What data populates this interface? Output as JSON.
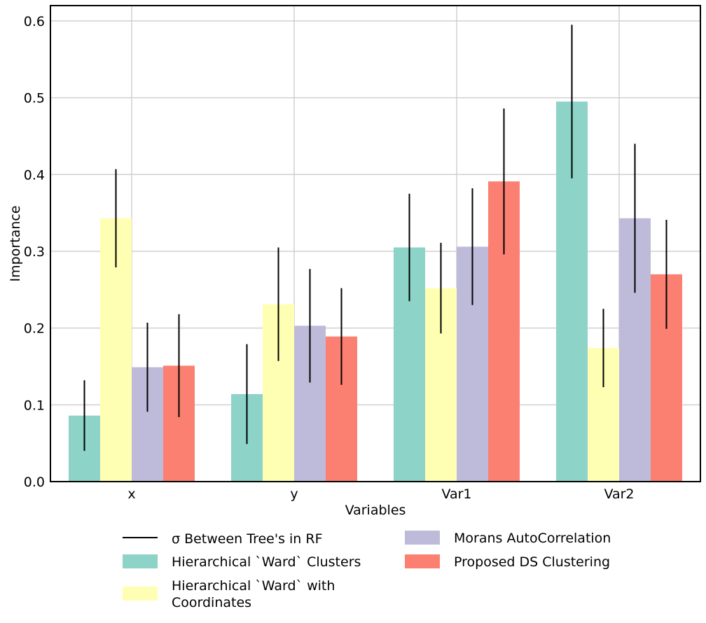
{
  "chart_data": {
    "type": "bar",
    "title": "",
    "xlabel": "Variables",
    "ylabel": "Importance",
    "ylim": [
      0,
      0.62
    ],
    "yticks": [
      "0.0",
      "0.1",
      "0.2",
      "0.3",
      "0.4",
      "0.5",
      "0.6"
    ],
    "grid": true,
    "legend_position": "bottom",
    "categories": [
      "x",
      "y",
      "Var1",
      "Var2"
    ],
    "error_label": "σ Between Tree's in RF",
    "series": [
      {
        "name": "Hierarchical `Ward` Clusters",
        "color": "#8dd3c7",
        "values": [
          0.086,
          0.114,
          0.305,
          0.495
        ],
        "errors": [
          0.046,
          0.065,
          0.07,
          0.1
        ]
      },
      {
        "name": "Hierarchical `Ward` with Coordinates",
        "color": "#ffffb3",
        "values": [
          0.343,
          0.231,
          0.252,
          0.174
        ],
        "errors": [
          0.064,
          0.074,
          0.059,
          0.051
        ]
      },
      {
        "name": "Morans AutoCorrelation",
        "color": "#bebada",
        "values": [
          0.149,
          0.203,
          0.306,
          0.343
        ],
        "errors": [
          0.058,
          0.074,
          0.076,
          0.097
        ]
      },
      {
        "name": "Proposed DS Clustering",
        "color": "#fb8072",
        "values": [
          0.151,
          0.189,
          0.391,
          0.27
        ],
        "errors": [
          0.067,
          0.063,
          0.095,
          0.071
        ]
      }
    ]
  }
}
